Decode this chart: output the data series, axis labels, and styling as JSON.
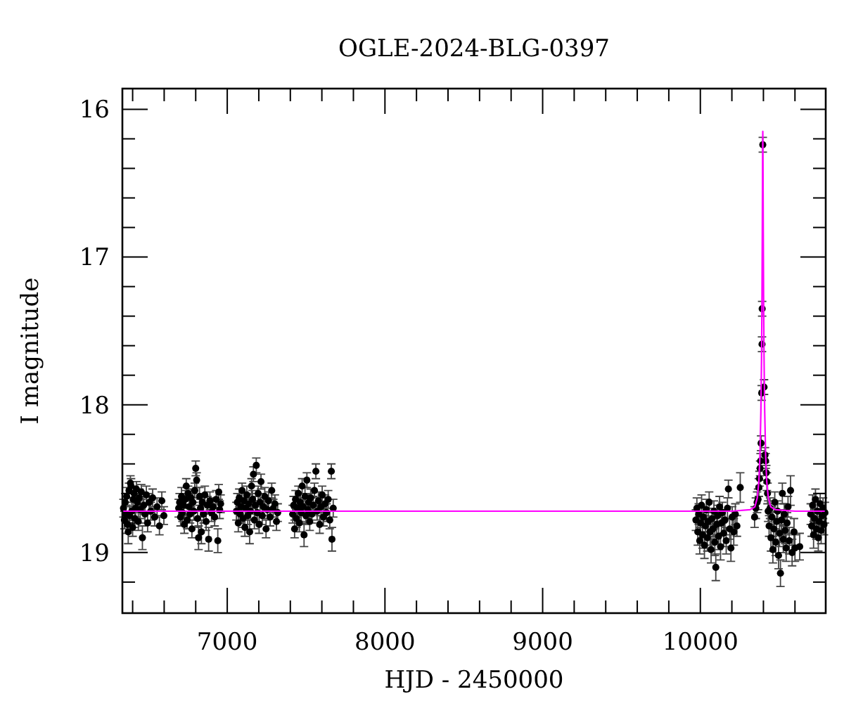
{
  "chart_data": {
    "type": "scatter",
    "title": "OGLE-2024-BLG-0397",
    "xlabel": "HJD - 2450000",
    "ylabel": "I magnitude",
    "xlim": [
      6335,
      10795
    ],
    "ylim": [
      19.41,
      15.86
    ],
    "xticks": [
      {
        "value": 6400,
        "label": null
      },
      {
        "value": 6600,
        "label": null
      },
      {
        "value": 6800,
        "label": null
      },
      7000,
      {
        "value": 7200,
        "label": null
      },
      {
        "value": 7400,
        "label": null
      },
      {
        "value": 7600,
        "label": null
      },
      {
        "value": 7800,
        "label": null
      },
      8000,
      {
        "value": 8200,
        "label": null
      },
      {
        "value": 8400,
        "label": null
      },
      {
        "value": 8600,
        "label": null
      },
      {
        "value": 8800,
        "label": null
      },
      9000,
      {
        "value": 9200,
        "label": null
      },
      {
        "value": 9400,
        "label": null
      },
      {
        "value": 9600,
        "label": null
      },
      {
        "value": 9800,
        "label": null
      },
      10000,
      {
        "value": 10200,
        "label": null
      },
      {
        "value": 10400,
        "label": null
      },
      {
        "value": 10600,
        "label": null
      }
    ],
    "yticks": [
      16,
      {
        "value": 16.2,
        "label": null
      },
      {
        "value": 16.4,
        "label": null
      },
      {
        "value": 16.6,
        "label": null
      },
      {
        "value": 16.8,
        "label": null
      },
      17,
      {
        "value": 17.2,
        "label": null
      },
      {
        "value": 17.4,
        "label": null
      },
      {
        "value": 17.6,
        "label": null
      },
      {
        "value": 17.8,
        "label": null
      },
      18,
      {
        "value": 18.2,
        "label": null
      },
      {
        "value": 18.4,
        "label": null
      },
      {
        "value": 18.6,
        "label": null
      },
      {
        "value": 18.8,
        "label": null
      },
      19,
      {
        "value": 19.2,
        "label": null
      }
    ],
    "marker": "circle",
    "series": [
      {
        "color": "#000000",
        "x": [
          6342,
          6348,
          6353,
          6358,
          6362,
          6367,
          6372,
          6377,
          6381,
          6386,
          6390,
          6395,
          6400,
          6404,
          6409,
          6414,
          6419,
          6424,
          6430,
          6436,
          6442,
          6448,
          6455,
          6462,
          6470,
          6478,
          6487,
          6495,
          6505,
          6515,
          6527,
          6540,
          6555,
          6570,
          6585,
          6598,
          6692,
          6698,
          6704,
          6710,
          6716,
          6722,
          6728,
          6734,
          6740,
          6746,
          6752,
          6758,
          6764,
          6770,
          6776,
          6782,
          6788,
          6794,
          6800,
          6806,
          6812,
          6818,
          6824,
          6830,
          6836,
          6842,
          6850,
          6858,
          6866,
          6874,
          6882,
          6890,
          6900,
          6910,
          6920,
          6930,
          6940,
          6946,
          6952,
          6958,
          7058,
          7064,
          7070,
          7076,
          7082,
          7088,
          7094,
          7100,
          7106,
          7112,
          7118,
          7124,
          7130,
          7136,
          7142,
          7148,
          7154,
          7160,
          7166,
          7172,
          7178,
          7184,
          7190,
          7196,
          7202,
          7208,
          7214,
          7222,
          7230,
          7238,
          7246,
          7254,
          7262,
          7272,
          7282,
          7292,
          7302,
          7312,
          7320,
          7415,
          7421,
          7427,
          7433,
          7439,
          7445,
          7451,
          7457,
          7463,
          7469,
          7475,
          7481,
          7487,
          7493,
          7499,
          7505,
          7511,
          7517,
          7523,
          7529,
          7537,
          7545,
          7553,
          7562,
          7570,
          7578,
          7586,
          7594,
          7602,
          7610,
          7620,
          7630,
          7640,
          7650,
          7660,
          7664,
          7672,
          9972,
          9978,
          9984,
          9990,
          9996,
          10002,
          10008,
          10014,
          10020,
          10026,
          10032,
          10038,
          10044,
          10050,
          10056,
          10062,
          10068,
          10074,
          10080,
          10086,
          10092,
          10098,
          10104,
          10110,
          10116,
          10122,
          10128,
          10134,
          10140,
          10148,
          10156,
          10164,
          10172,
          10178,
          10186,
          10194,
          10202,
          10212,
          10222,
          10232,
          10253,
          10344,
          10352,
          10360,
          10366,
          10371,
          10375,
          10379,
          10382,
          10385,
          10389,
          10391,
          10392,
          10396,
          10404,
          10410,
          10414,
          10418,
          10422,
          10426,
          10430,
          10436,
          10442,
          10448,
          10454,
          10460,
          10466,
          10472,
          10478,
          10484,
          10490,
          10496,
          10502,
          10508,
          10514,
          10520,
          10526,
          10532,
          10538,
          10544,
          10550,
          10556,
          10564,
          10572,
          10582,
          10594,
          10600,
          10630,
          10700,
          10706,
          10712,
          10718,
          10724,
          10730,
          10736,
          10742,
          10748,
          10754,
          10760,
          10766,
          10772,
          10778,
          10784,
          10790
        ],
        "values": [
          18.7,
          18.78,
          18.66,
          18.74,
          18.62,
          18.81,
          18.86,
          18.58,
          18.75,
          18.53,
          18.55,
          18.72,
          18.83,
          18.64,
          18.6,
          18.77,
          18.7,
          18.57,
          18.66,
          18.79,
          18.63,
          18.71,
          18.59,
          18.9,
          18.68,
          18.74,
          18.61,
          18.8,
          18.66,
          18.72,
          18.63,
          18.76,
          18.69,
          18.82,
          18.65,
          18.75,
          18.7,
          18.66,
          18.76,
          18.62,
          18.73,
          18.68,
          18.81,
          18.64,
          18.55,
          18.78,
          18.6,
          18.69,
          18.74,
          18.63,
          18.84,
          18.66,
          18.72,
          18.58,
          18.43,
          18.51,
          18.77,
          18.9,
          18.62,
          18.7,
          18.86,
          18.66,
          18.74,
          18.61,
          18.79,
          18.68,
          18.91,
          18.65,
          18.73,
          18.69,
          18.76,
          18.64,
          18.92,
          18.59,
          18.71,
          18.67,
          18.72,
          18.66,
          18.8,
          18.63,
          18.74,
          18.69,
          18.58,
          18.77,
          18.65,
          18.83,
          18.7,
          18.61,
          18.75,
          18.67,
          18.86,
          18.72,
          18.55,
          18.64,
          18.47,
          18.78,
          18.68,
          18.41,
          18.73,
          18.6,
          18.81,
          18.66,
          18.52,
          18.75,
          18.69,
          18.62,
          18.84,
          18.71,
          18.65,
          18.76,
          18.58,
          18.7,
          18.67,
          18.79,
          18.73,
          18.74,
          18.68,
          18.84,
          18.64,
          18.77,
          18.7,
          18.6,
          18.8,
          18.66,
          18.73,
          18.55,
          18.69,
          18.88,
          18.62,
          18.75,
          18.51,
          18.71,
          18.66,
          18.79,
          18.63,
          18.74,
          18.68,
          18.58,
          18.45,
          18.72,
          18.65,
          18.81,
          18.69,
          18.61,
          18.76,
          18.67,
          18.73,
          18.64,
          18.78,
          18.45,
          18.91,
          18.7,
          18.78,
          18.7,
          18.86,
          18.74,
          18.92,
          18.8,
          18.68,
          18.88,
          18.76,
          18.95,
          18.82,
          18.71,
          18.9,
          18.79,
          18.66,
          18.86,
          18.98,
          18.77,
          18.84,
          18.72,
          18.93,
          19.1,
          18.81,
          18.75,
          18.89,
          18.69,
          18.96,
          18.8,
          18.73,
          18.87,
          18.78,
          18.92,
          18.7,
          18.57,
          18.84,
          18.97,
          18.76,
          18.86,
          18.74,
          18.82,
          18.56,
          18.76,
          18.7,
          18.66,
          18.64,
          18.56,
          18.5,
          18.43,
          18.38,
          18.26,
          17.92,
          17.59,
          17.35,
          16.24,
          17.88,
          18.34,
          18.38,
          18.46,
          18.52,
          18.6,
          18.72,
          18.82,
          18.7,
          18.9,
          18.76,
          18.98,
          18.84,
          18.66,
          18.93,
          18.79,
          18.72,
          19.02,
          18.87,
          19.14,
          18.78,
          18.6,
          18.91,
          18.74,
          18.85,
          18.97,
          18.8,
          18.69,
          18.92,
          18.58,
          19.0,
          18.86,
          18.97,
          18.96,
          18.74,
          18.82,
          18.68,
          18.88,
          18.77,
          18.64,
          18.84,
          18.72,
          18.9,
          18.79,
          18.67,
          18.85,
          18.75,
          18.7,
          18.81,
          18.73
        ],
        "errors": [
          0.06,
          0.06,
          0.06,
          0.06,
          0.06,
          0.06,
          0.08,
          0.05,
          0.06,
          0.05,
          0.05,
          0.06,
          0.06,
          0.06,
          0.05,
          0.06,
          0.06,
          0.05,
          0.06,
          0.06,
          0.06,
          0.06,
          0.05,
          0.08,
          0.06,
          0.06,
          0.06,
          0.06,
          0.06,
          0.06,
          0.06,
          0.06,
          0.06,
          0.06,
          0.06,
          0.06,
          0.06,
          0.06,
          0.06,
          0.06,
          0.06,
          0.06,
          0.06,
          0.06,
          0.05,
          0.06,
          0.05,
          0.06,
          0.06,
          0.06,
          0.06,
          0.06,
          0.06,
          0.05,
          0.05,
          0.05,
          0.06,
          0.08,
          0.06,
          0.06,
          0.08,
          0.06,
          0.06,
          0.06,
          0.06,
          0.06,
          0.08,
          0.06,
          0.06,
          0.06,
          0.06,
          0.06,
          0.08,
          0.05,
          0.06,
          0.06,
          0.06,
          0.06,
          0.06,
          0.06,
          0.06,
          0.06,
          0.05,
          0.06,
          0.06,
          0.06,
          0.06,
          0.06,
          0.06,
          0.06,
          0.08,
          0.06,
          0.05,
          0.06,
          0.05,
          0.06,
          0.06,
          0.05,
          0.06,
          0.05,
          0.06,
          0.06,
          0.05,
          0.06,
          0.06,
          0.06,
          0.06,
          0.06,
          0.06,
          0.06,
          0.05,
          0.06,
          0.06,
          0.06,
          0.06,
          0.06,
          0.06,
          0.06,
          0.06,
          0.06,
          0.06,
          0.05,
          0.06,
          0.06,
          0.06,
          0.05,
          0.06,
          0.08,
          0.06,
          0.06,
          0.05,
          0.06,
          0.06,
          0.06,
          0.06,
          0.06,
          0.06,
          0.05,
          0.05,
          0.06,
          0.06,
          0.06,
          0.06,
          0.06,
          0.06,
          0.06,
          0.06,
          0.06,
          0.06,
          0.05,
          0.08,
          0.06,
          0.07,
          0.07,
          0.09,
          0.07,
          0.09,
          0.07,
          0.07,
          0.09,
          0.07,
          0.09,
          0.07,
          0.07,
          0.09,
          0.07,
          0.07,
          0.09,
          0.09,
          0.07,
          0.07,
          0.07,
          0.09,
          0.09,
          0.07,
          0.07,
          0.09,
          0.07,
          0.09,
          0.07,
          0.07,
          0.09,
          0.07,
          0.09,
          0.07,
          0.06,
          0.07,
          0.09,
          0.07,
          0.09,
          0.07,
          0.07,
          0.1,
          0.07,
          0.07,
          0.07,
          0.07,
          0.06,
          0.05,
          0.05,
          0.05,
          0.05,
          0.05,
          0.05,
          0.05,
          0.05,
          0.05,
          0.05,
          0.05,
          0.05,
          0.06,
          0.07,
          0.07,
          0.07,
          0.07,
          0.09,
          0.07,
          0.09,
          0.07,
          0.07,
          0.09,
          0.07,
          0.07,
          0.09,
          0.09,
          0.09,
          0.07,
          0.07,
          0.09,
          0.07,
          0.09,
          0.09,
          0.07,
          0.07,
          0.09,
          0.1,
          0.09,
          0.09,
          0.09,
          0.09,
          0.07,
          0.07,
          0.07,
          0.09,
          0.07,
          0.07,
          0.07,
          0.07,
          0.09,
          0.07,
          0.07,
          0.09,
          0.07,
          0.07,
          0.07,
          0.07
        ]
      },
      {
        "type": "line",
        "color": "#ff00ff",
        "marker": "none",
        "x": [
          6335,
          10200,
          10316,
          10346,
          10361,
          10371,
          10378,
          10384,
          10388,
          10391,
          10393,
          10394,
          10395,
          10396,
          10397,
          10398,
          10399,
          10401,
          10404,
          10408,
          10414,
          10421,
          10431,
          10446,
          10476,
          10600,
          10795
        ],
        "values": [
          18.72,
          18.72,
          18.71,
          18.69,
          18.63,
          18.52,
          18.34,
          18.04,
          17.69,
          17.26,
          16.83,
          16.56,
          16.28,
          16.15,
          16.28,
          16.56,
          16.83,
          17.26,
          17.69,
          18.04,
          18.34,
          18.52,
          18.63,
          18.69,
          18.71,
          18.72,
          18.72
        ]
      }
    ]
  }
}
